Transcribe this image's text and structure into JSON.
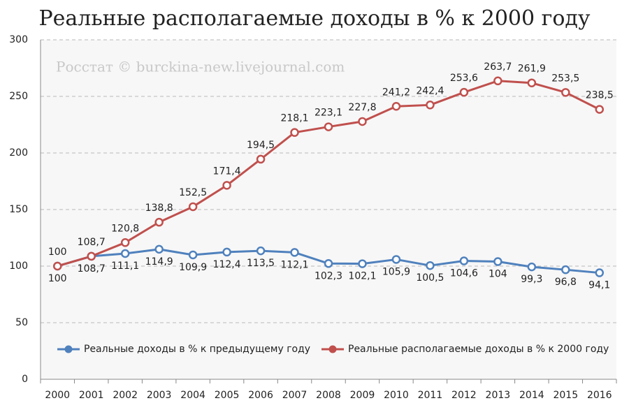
{
  "chart_data": {
    "type": "line",
    "title": "Реальные располагаемые доходы в % к 2000 году",
    "annotation": "Росстат © burckina-new.livejournal.com",
    "categories": [
      "2000",
      "2001",
      "2002",
      "2003",
      "2004",
      "2005",
      "2006",
      "2007",
      "2008",
      "2009",
      "2010",
      "2011",
      "2012",
      "2013",
      "2014",
      "2015",
      "2016"
    ],
    "series": [
      {
        "name": "Реальные доходы в % к предыдущему году",
        "color": "#4f81bd",
        "values": [
          100,
          108.7,
          111.1,
          114.9,
          109.9,
          112.4,
          113.5,
          112.1,
          102.3,
          102.1,
          105.9,
          100.5,
          104.6,
          104,
          99.3,
          96.8,
          94.1
        ],
        "value_labels": [
          "100",
          "108,7",
          "111,1",
          "114,9",
          "109,9",
          "112,4",
          "113,5",
          "112,1",
          "102,3",
          "102,1",
          "105,9",
          "100,5",
          "104,6",
          "104",
          "99,3",
          "96,8",
          "94,1"
        ]
      },
      {
        "name": "Реальные располагаемые доходы в % к 2000 году",
        "color": "#c0504d",
        "values": [
          100,
          108.7,
          120.8,
          138.8,
          152.5,
          171.4,
          194.5,
          218.1,
          223.1,
          227.8,
          241.2,
          242.4,
          253.6,
          263.7,
          261.9,
          253.5,
          238.5
        ],
        "value_labels": [
          "100",
          "108,7",
          "120,8",
          "138,8",
          "152,5",
          "171,4",
          "194,5",
          "218,1",
          "223,1",
          "227,8",
          "241,2",
          "242,4",
          "253,6",
          "263,7",
          "261,9",
          "253,5",
          "238,5"
        ]
      }
    ],
    "ylim": [
      0,
      300
    ],
    "yticks": [
      0,
      50,
      100,
      150,
      200,
      250,
      300
    ],
    "grid": true,
    "legend": "bottom"
  }
}
